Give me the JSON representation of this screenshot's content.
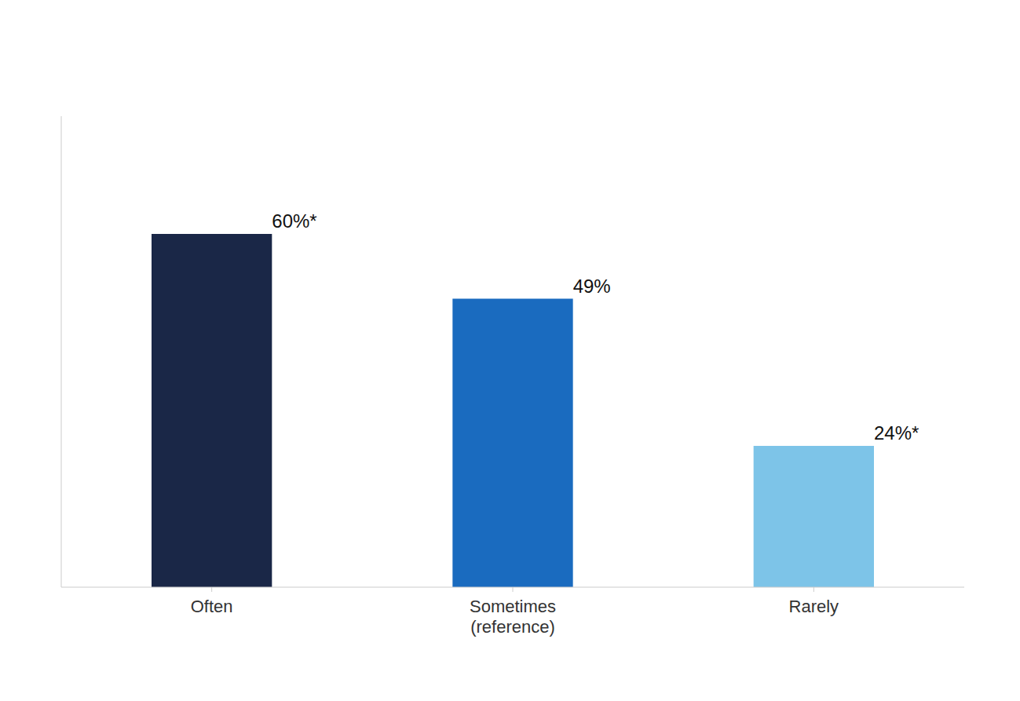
{
  "chart_data": {
    "type": "bar",
    "categories": [
      "Often",
      "Sometimes\n(reference)",
      "Rarely"
    ],
    "values": [
      60,
      49,
      24
    ],
    "value_labels": [
      "60%*",
      "49%",
      "24%*"
    ],
    "colors": [
      "#1a2747",
      "#1a6bbf",
      "#7dc4e8"
    ],
    "ylim": [
      0,
      80
    ],
    "tick_labels": "x",
    "data_labels": true,
    "grid": false
  }
}
